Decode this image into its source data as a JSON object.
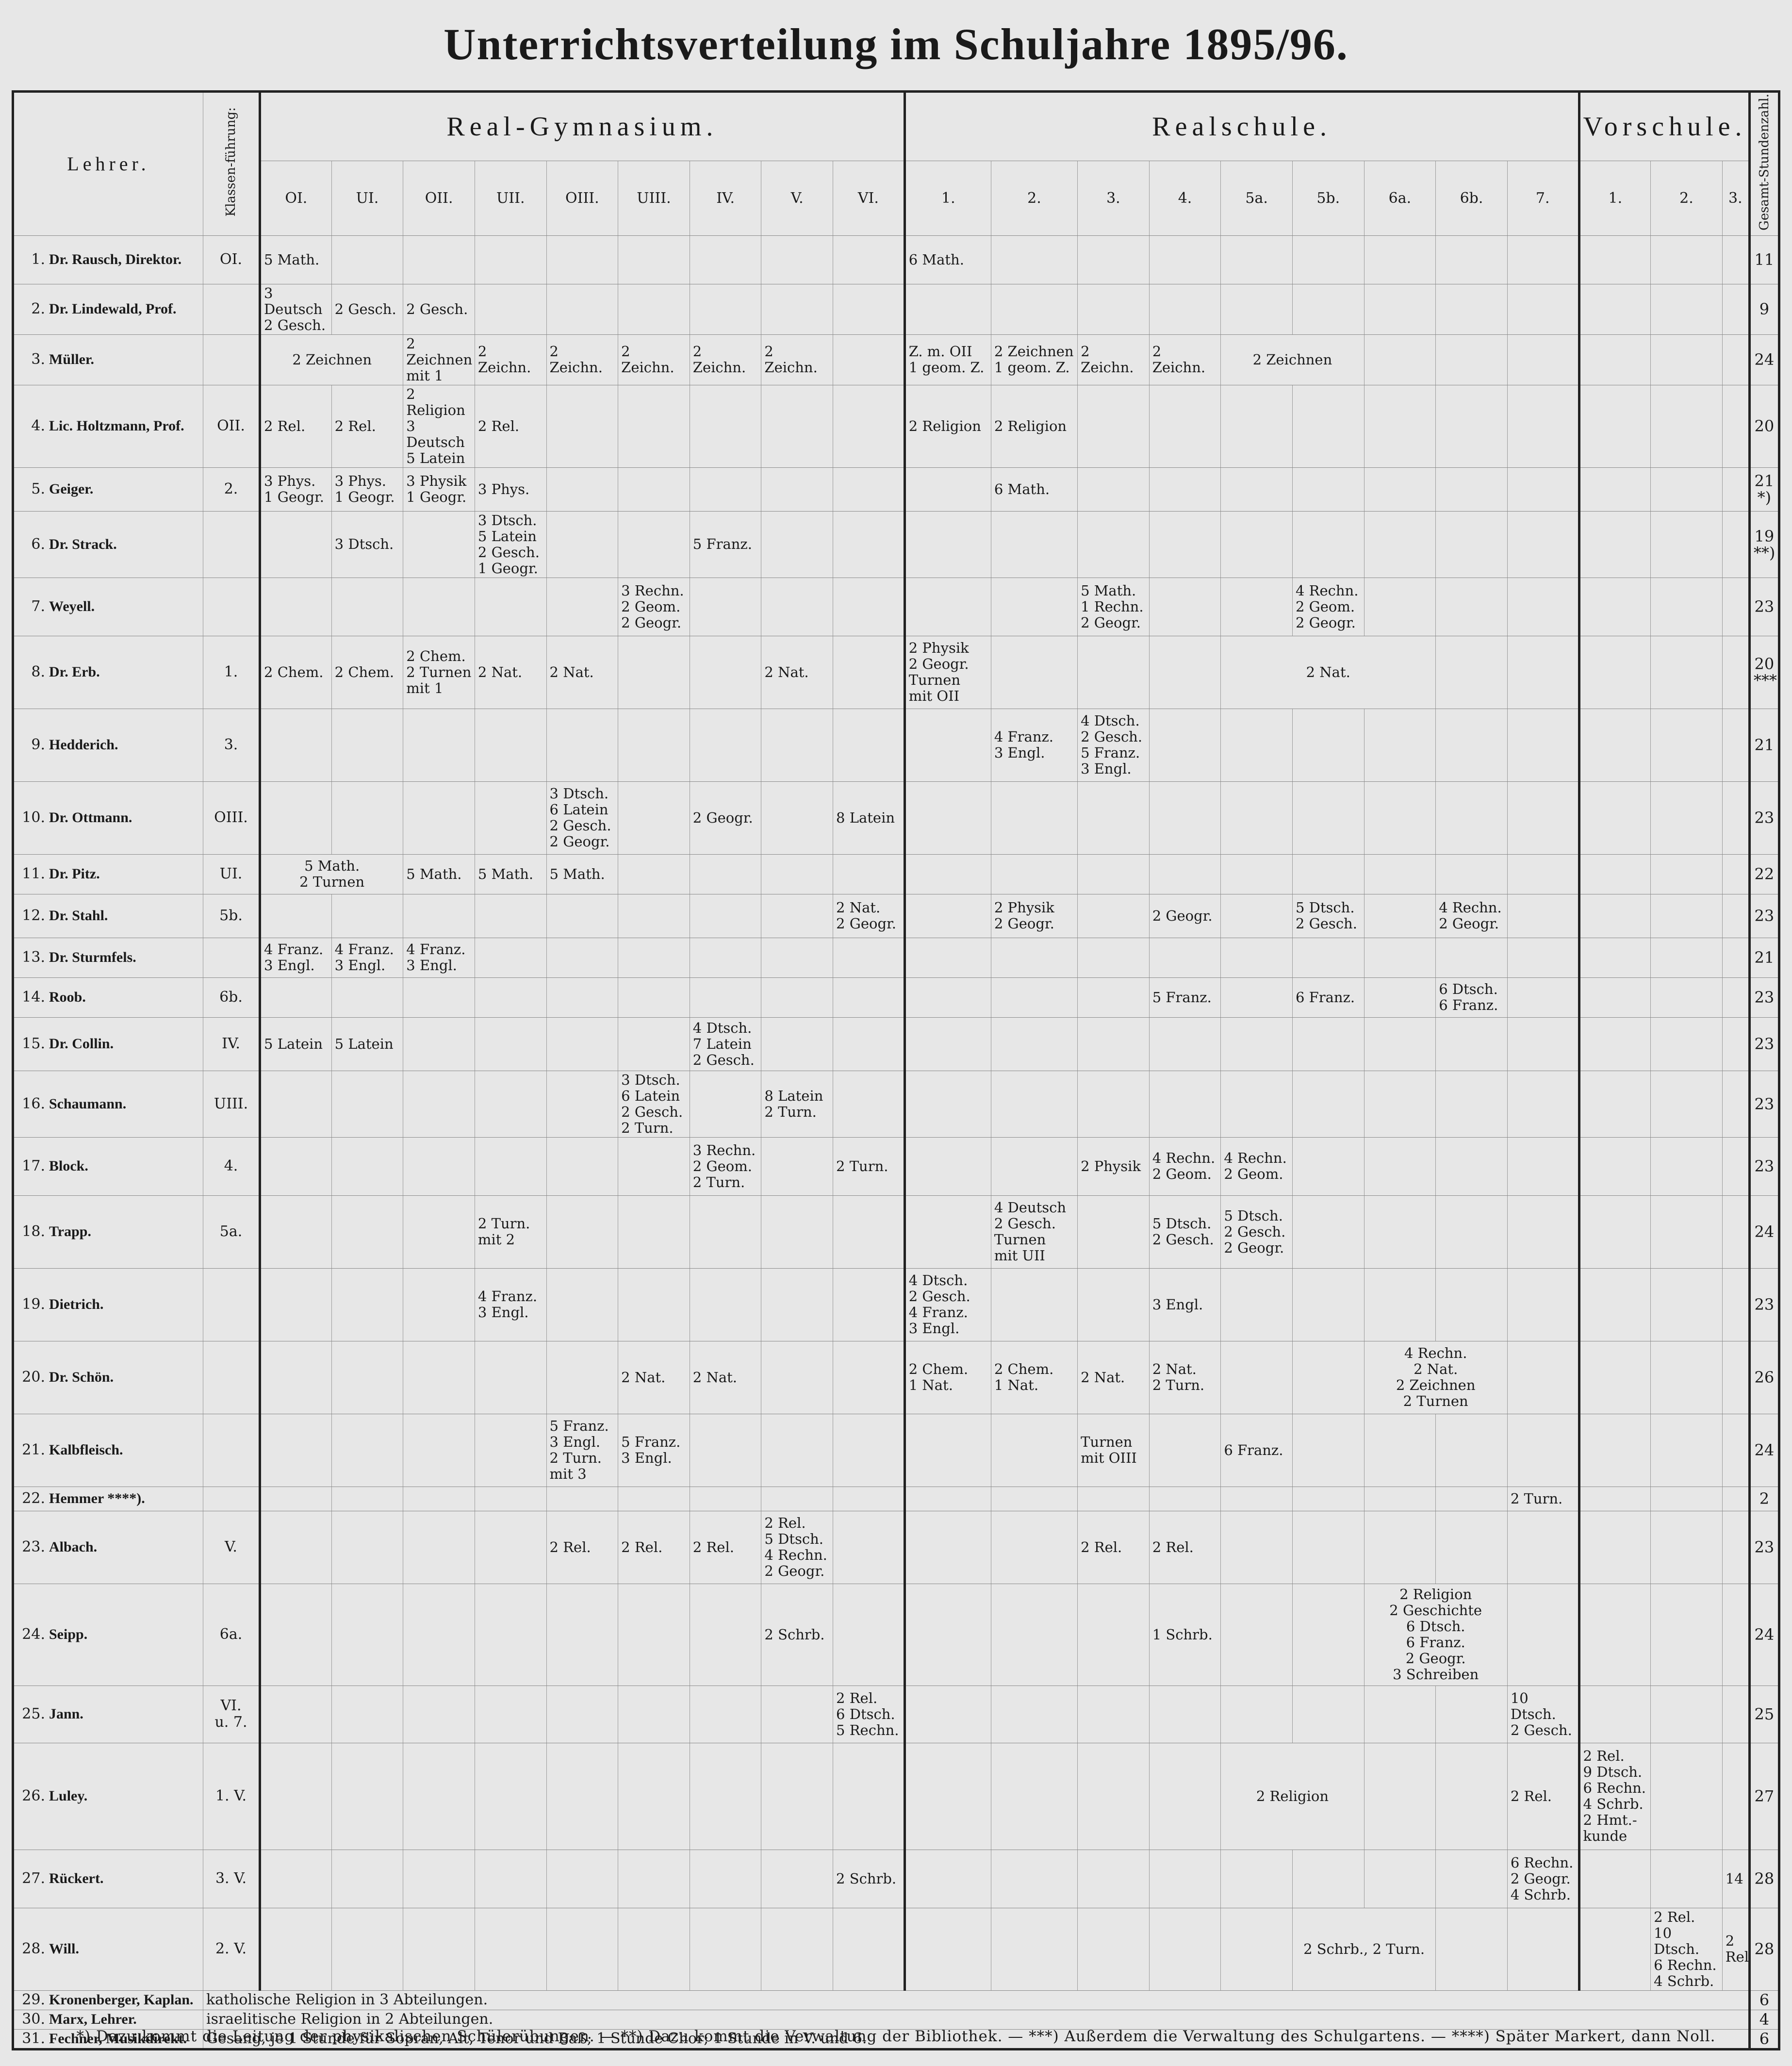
{
  "title": "Unterrichtsverteilung im Schuljahre 1895/96.",
  "header": {
    "lehrer": "Lehrer.",
    "klassenfuehrung": "Klassen-führung:",
    "gesamt": "Gesamt-Stundenzahl.",
    "groups": {
      "rg": "Real-Gymnasium.",
      "rs": "Realschule.",
      "vs": "Vorschule."
    },
    "classes": [
      "OI.",
      "UI.",
      "OII.",
      "UII.",
      "OIII.",
      "UIII.",
      "IV.",
      "V.",
      "VI.",
      "1.",
      "2.",
      "3.",
      "4.",
      "5a.",
      "5b.",
      "6a.",
      "6b.",
      "7.",
      "1.",
      "2.",
      "3."
    ]
  },
  "rows": [
    {
      "num": "1.",
      "name": "Dr. Rausch, Direktor.",
      "kf": "OI.",
      "total": "11",
      "cells": {
        "0": "5 Math.",
        "9": "6 Math."
      }
    },
    {
      "num": "2.",
      "name": "Dr. Lindewald, Prof.",
      "kf": "",
      "total": "9",
      "cells": {
        "0": "3 Deutsch\n2 Gesch.",
        "1": "2 Gesch.",
        "2": "2 Gesch."
      }
    },
    {
      "num": "3.",
      "name": "Müller.",
      "kf": "",
      "total": "24",
      "cells": {
        "0-1": "2 Zeichnen",
        "2": "2 Zeichnen\nmit 1",
        "3": "2 Zeichn.",
        "4": "2 Zeichn.",
        "5": "2 Zeichn.",
        "6": "2 Zeichn.",
        "7": "2 Zeichn.",
        "9": "Z. m. OII\n1 geom. Z.",
        "10": "2 Zeichnen\n1 geom. Z.",
        "11": "2 Zeichn.",
        "12": "2 Zeichn.",
        "13-14": "2 Zeichnen"
      }
    },
    {
      "num": "4.",
      "name": "Lic. Holtzmann, Prof.",
      "kf": "OII.",
      "total": "20",
      "cells": {
        "0": "2 Rel.",
        "1": "2 Rel.",
        "2": "2 Religion\n3 Deutsch\n5 Latein",
        "3": "2 Rel.",
        "9": "2 Religion",
        "10": "2 Religion"
      }
    },
    {
      "num": "5.",
      "name": "Geiger.",
      "kf": "2.",
      "total": "21\n*)",
      "cells": {
        "0": "3 Phys.\n1 Geogr.",
        "1": "3 Phys.\n1 Geogr.",
        "2": "3 Physik\n1 Geogr.",
        "3": "3 Phys.",
        "10": "6 Math."
      }
    },
    {
      "num": "6.",
      "name": "Dr. Strack.",
      "kf": "",
      "total": "19\n**)",
      "cells": {
        "1": "3 Dtsch.",
        "3": "3 Dtsch.\n5 Latein\n2 Gesch.\n1 Geogr.",
        "6": "5 Franz."
      }
    },
    {
      "num": "7.",
      "name": "Weyell.",
      "kf": "",
      "total": "23",
      "cells": {
        "5": "3 Rechn.\n2 Geom.\n2 Geogr.",
        "11": "5 Math.\n1 Rechn.\n2 Geogr.",
        "14": "4 Rechn.\n2 Geom.\n2 Geogr."
      }
    },
    {
      "num": "8.",
      "name": "Dr. Erb.",
      "kf": "1.",
      "total": "20\n***)",
      "cells": {
        "0": "2 Chem.",
        "1": "2 Chem.",
        "2": "2 Chem.\n2 Turnen\nmit 1",
        "3": "2 Nat.",
        "4": "2 Nat.",
        "7": "2 Nat.",
        "9": "2 Physik\n2 Geogr.\nTurnen\nmit OII",
        "13-15": "2 Nat."
      }
    },
    {
      "num": "9.",
      "name": "Hedderich.",
      "kf": "3.",
      "total": "21",
      "cells": {
        "10": "4 Franz.\n3 Engl.",
        "11": "4 Dtsch.\n2 Gesch.\n5 Franz.\n3 Engl."
      }
    },
    {
      "num": "10.",
      "name": "Dr. Ottmann.",
      "kf": "OIII.",
      "total": "23",
      "cells": {
        "4": "3 Dtsch.\n6 Latein\n2 Gesch.\n2 Geogr.",
        "6": "2 Geogr.",
        "8": "8 Latein"
      }
    },
    {
      "num": "11.",
      "name": "Dr. Pitz.",
      "kf": "UI.",
      "total": "22",
      "cells": {
        "0-1": "5 Math.\n2 Turnen",
        "2": "5 Math.",
        "3": "5 Math.",
        "4": "5 Math."
      }
    },
    {
      "num": "12.",
      "name": "Dr. Stahl.",
      "kf": "5b.",
      "total": "23",
      "cells": {
        "8": "2 Nat.\n2 Geogr.",
        "10": "2 Physik\n2 Geogr.",
        "12": "2 Geogr.",
        "14": "5 Dtsch.\n2 Gesch.",
        "16": "4 Rechn.\n2 Geogr."
      }
    },
    {
      "num": "13.",
      "name": "Dr. Sturmfels.",
      "kf": "",
      "total": "21",
      "cells": {
        "0": "4 Franz.\n3 Engl.",
        "1": "4 Franz.\n3 Engl.",
        "2": "4 Franz.\n3 Engl."
      }
    },
    {
      "num": "14.",
      "name": "Roob.",
      "kf": "6b.",
      "total": "23",
      "cells": {
        "12": "5 Franz.",
        "14": "6 Franz.",
        "16": "6 Dtsch.\n6 Franz."
      }
    },
    {
      "num": "15.",
      "name": "Dr. Collin.",
      "kf": "IV.",
      "total": "23",
      "cells": {
        "0": "5 Latein",
        "1": "5 Latein",
        "6": "4 Dtsch.\n7 Latein\n2 Gesch."
      }
    },
    {
      "num": "16.",
      "name": "Schaumann.",
      "kf": "UIII.",
      "total": "23",
      "cells": {
        "5": "3 Dtsch.\n6 Latein\n2 Gesch.\n2 Turn.",
        "7": "8 Latein\n2 Turn."
      }
    },
    {
      "num": "17.",
      "name": "Block.",
      "kf": "4.",
      "total": "23",
      "cells": {
        "6": "3 Rechn.\n2 Geom.\n2 Turn.",
        "8": "2 Turn.",
        "11": "2 Physik",
        "12": "4 Rechn.\n2 Geom.",
        "13": "4 Rechn.\n2 Geom."
      }
    },
    {
      "num": "18.",
      "name": "Trapp.",
      "kf": "5a.",
      "total": "24",
      "cells": {
        "3": "2 Turn.\nmit 2",
        "10": "4 Deutsch\n2 Gesch.\nTurnen\nmit UII",
        "12": "5 Dtsch.\n2 Gesch.",
        "13": "5 Dtsch.\n2 Gesch.\n2 Geogr."
      }
    },
    {
      "num": "19.",
      "name": "Dietrich.",
      "kf": "",
      "total": "23",
      "cells": {
        "3": "4 Franz.\n3 Engl.",
        "9": "4 Dtsch.\n2 Gesch.\n4 Franz.\n3 Engl.",
        "12": "3 Engl."
      }
    },
    {
      "num": "20.",
      "name": "Dr. Schön.",
      "kf": "",
      "total": "26",
      "cells": {
        "5": "2 Nat.",
        "6": "2 Nat.",
        "9": "2 Chem.\n1 Nat.",
        "10": "2 Chem.\n1 Nat.",
        "11": "2 Nat.",
        "12": "2 Nat.\n2 Turn.",
        "15-16": "4 Rechn.\n2 Nat.\n2 Zeichnen\n2 Turnen"
      }
    },
    {
      "num": "21.",
      "name": "Kalbfleisch.",
      "kf": "",
      "total": "24",
      "cells": {
        "4": "5 Franz.\n3 Engl.\n2 Turn.\nmit 3",
        "5": "5 Franz.\n3 Engl.",
        "11": "Turnen\nmit OIII",
        "13": "6 Franz."
      }
    },
    {
      "num": "22.",
      "name": "Hemmer ****).",
      "kf": "",
      "total": "2",
      "cells": {
        "17": "2 Turn."
      }
    },
    {
      "num": "23.",
      "name": "Albach.",
      "kf": "V.",
      "total": "23",
      "cells": {
        "4": "2 Rel.",
        "5": "2 Rel.",
        "6": "2 Rel.",
        "7": "2 Rel.\n5 Dtsch.\n4 Rechn.\n2 Geogr.",
        "11": "2 Rel.",
        "12": "2 Rel."
      }
    },
    {
      "num": "24.",
      "name": "Seipp.",
      "kf": "6a.",
      "total": "24",
      "cells": {
        "7": "2 Schrb.",
        "12": "1 Schrb.",
        "15-16": "2 Religion\n2 Geschichte\n6 Dtsch.\n6 Franz.\n2 Geogr.\n3 Schreiben"
      }
    },
    {
      "num": "25.",
      "name": "Jann.",
      "kf": "VI.\nu. 7.",
      "total": "25",
      "cells": {
        "8": "2 Rel.\n6 Dtsch.\n5 Rechn.",
        "17": "10 Dtsch.\n2 Gesch."
      }
    },
    {
      "num": "26.",
      "name": "Luley.",
      "kf": "1. V.",
      "total": "27",
      "cells": {
        "13-14": "2 Religion",
        "17": "2 Rel.",
        "18": "2 Rel.\n9 Dtsch.\n6 Rechn.\n4 Schrb.\n2 Hmt.-\nkunde"
      }
    },
    {
      "num": "27.",
      "name": "Rückert.",
      "kf": "3. V.",
      "total": "28",
      "cells": {
        "8": "2 Schrb.",
        "17": "6 Rechn.\n2 Geogr.\n4 Schrb.",
        "20": "14"
      }
    },
    {
      "num": "28.",
      "name": "Will.",
      "kf": "2. V.",
      "total": "28",
      "cells": {
        "14-15": "2 Schrb., 2 Turn.",
        "19": "2 Rel.\n10 Dtsch.\n6 Rechn.\n4 Schrb.",
        "20": "2 Rel."
      }
    }
  ],
  "span_rows": [
    {
      "num": "29.",
      "name": "Kronenberger, Kaplan.",
      "text": "katholische Religion in 3 Abteilungen.",
      "total": "6"
    },
    {
      "num": "30.",
      "name": "Marx, Lehrer.",
      "text": "israelitische Religion in 2 Abteilungen.",
      "total": "4"
    },
    {
      "num": "31.",
      "name": "Fechner, Musikdirekt.",
      "text": "Gesang, je 1 Stunde für Sopran, Alt, Tenor und Baß; 1 Stunde Chor; 1 Stunde in V. und 6.",
      "total": "6"
    }
  ],
  "footnote": "*) Dazu kommt die Leitung der physikalischen Schülerübungen. — **) Dazu kommt die Verwaltung der Bibliothek. — ***) Außerdem die Verwaltung des Schulgartens. — ****) Später Markert, dann Noll."
}
